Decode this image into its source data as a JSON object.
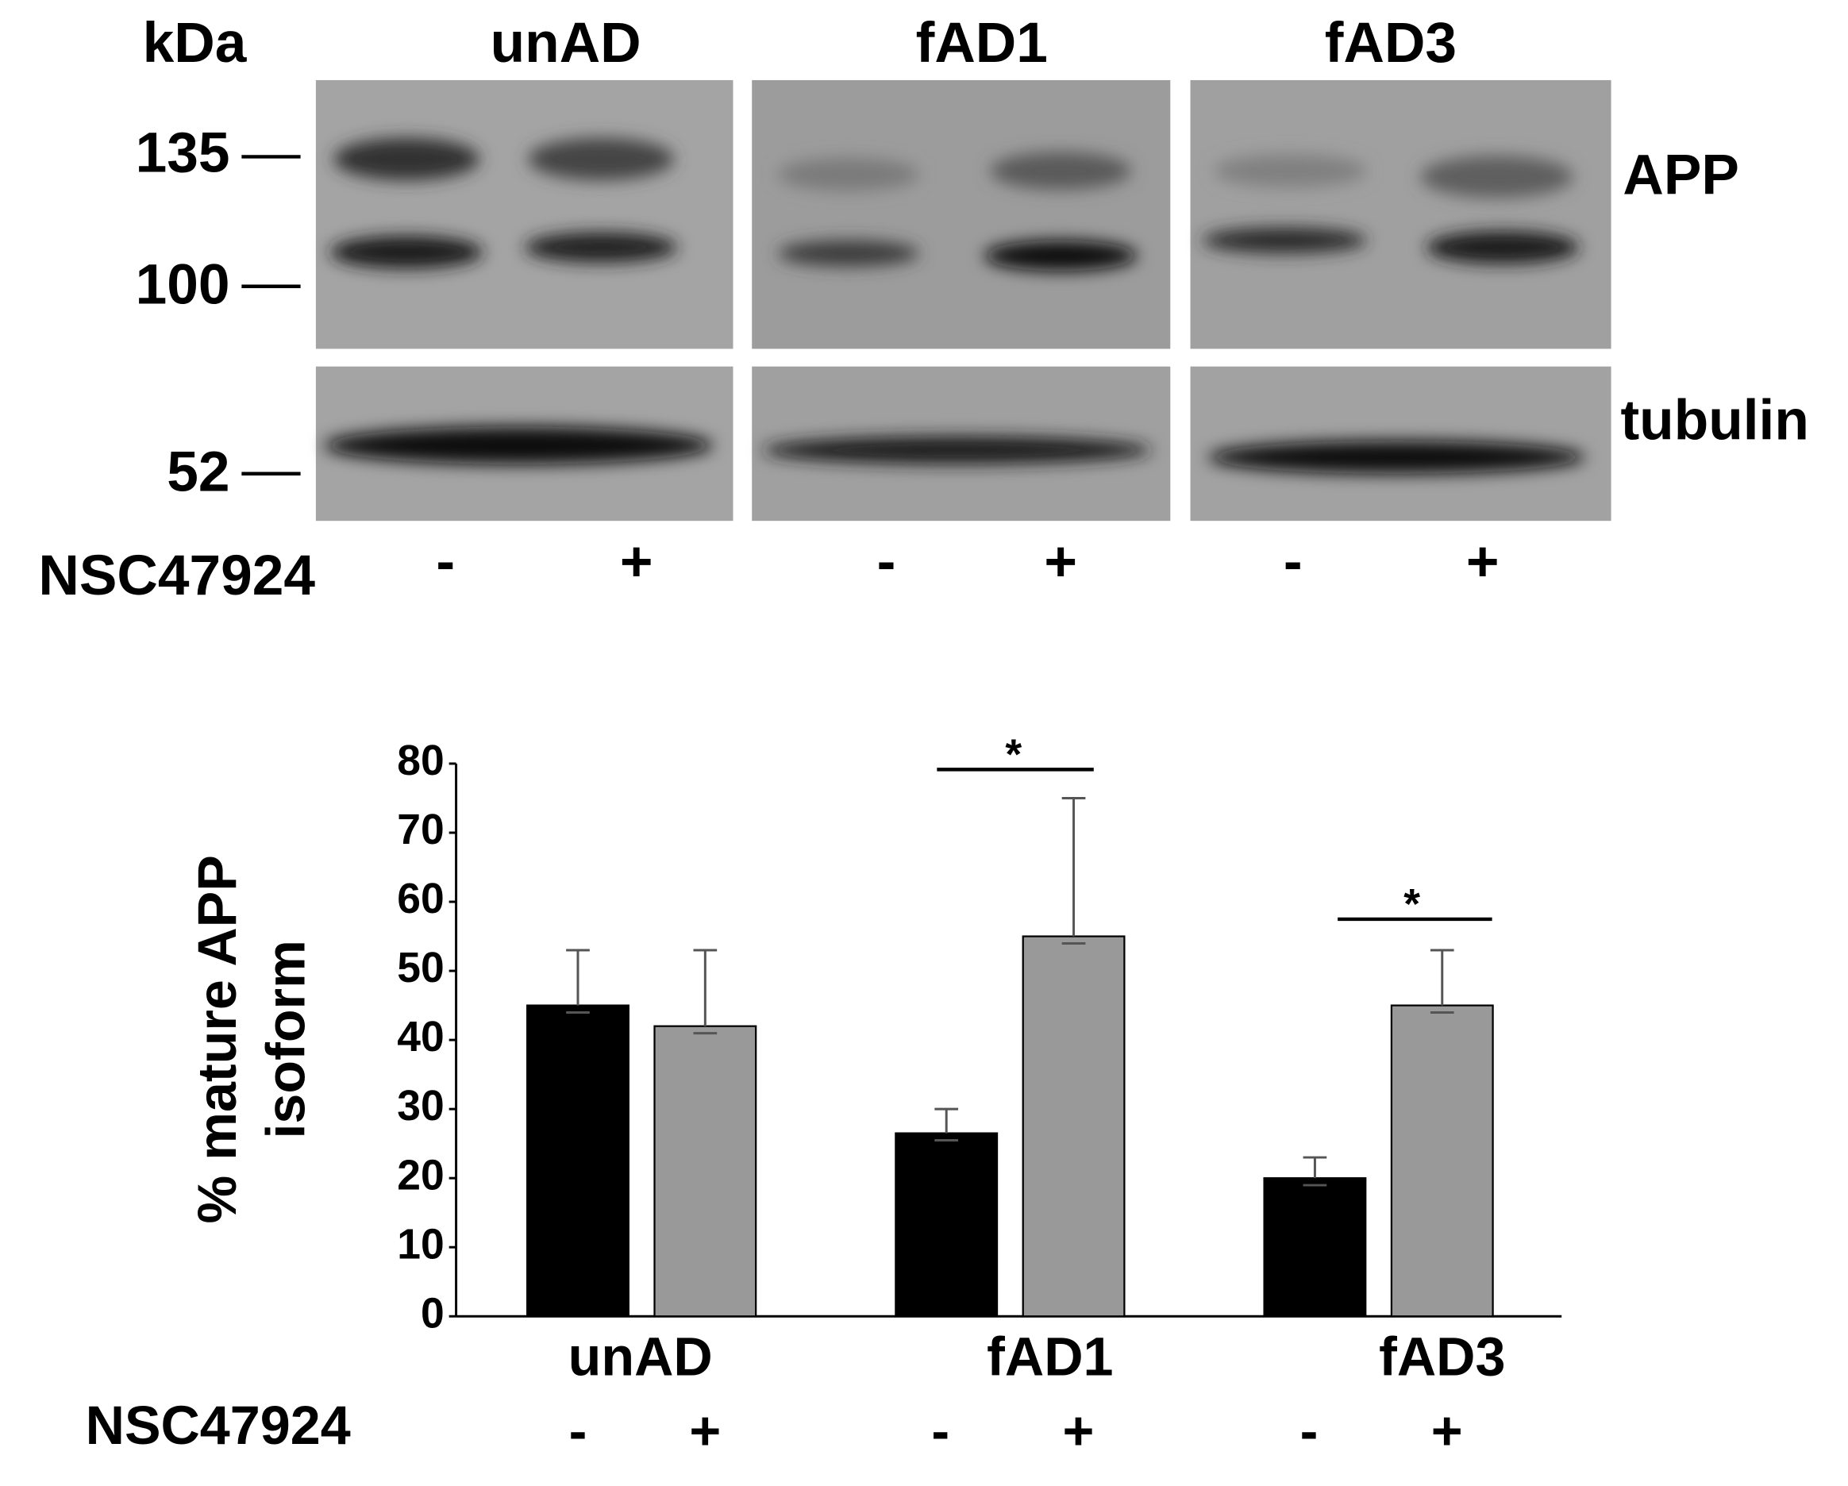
{
  "blot": {
    "kda_label": "kDa",
    "groups": [
      "unAD",
      "fAD1",
      "fAD3"
    ],
    "markers": [
      "135",
      "100",
      "52"
    ],
    "bands": [
      "APP",
      "tubulin"
    ],
    "treatment_label": "NSC47924",
    "treatments": [
      "-",
      "+",
      "-",
      "+",
      "-",
      "+"
    ]
  },
  "chart_data": {
    "type": "bar",
    "ylabel": [
      "% mature APP",
      "isoform"
    ],
    "categories": [
      "unAD",
      "fAD1",
      "fAD3"
    ],
    "series": [
      {
        "name": "-",
        "color": "#000000",
        "values": [
          45,
          26.5,
          20
        ],
        "errors": [
          8,
          3.5,
          3
        ]
      },
      {
        "name": "+",
        "color": "#999999",
        "values": [
          42,
          55,
          45
        ],
        "errors": [
          11,
          20,
          8
        ]
      }
    ],
    "treatment_label": "NSC47924",
    "annotations": [
      "*",
      "*"
    ],
    "ylim": [
      0,
      80
    ],
    "yticks": [
      0,
      10,
      20,
      30,
      40,
      50,
      60,
      70,
      80
    ]
  }
}
